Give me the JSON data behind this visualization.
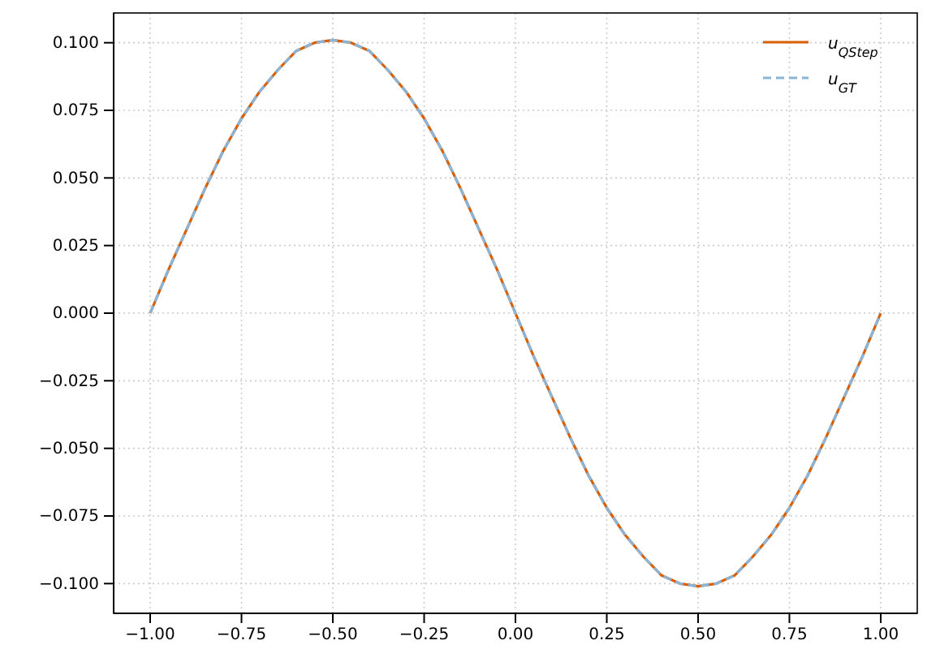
{
  "chart_data": {
    "type": "line",
    "x": [
      -1,
      -0.95,
      -0.9,
      -0.85,
      -0.8,
      -0.75,
      -0.7,
      -0.65,
      -0.6,
      -0.55,
      -0.5,
      -0.45,
      -0.4,
      -0.35,
      -0.3,
      -0.25,
      -0.2,
      -0.15,
      -0.1,
      -0.05,
      0,
      0.05,
      0.1,
      0.15,
      0.2,
      0.25,
      0.3,
      0.35,
      0.4,
      0.45,
      0.5,
      0.55,
      0.6,
      0.65,
      0.7,
      0.75,
      0.8,
      0.85,
      0.9,
      0.95,
      1
    ],
    "series": [
      {
        "name": "u$_{QStep}$",
        "color": "#d95f02",
        "line_style": "solid",
        "values": [
          0,
          0.016,
          0.031,
          0.046,
          0.06,
          0.072,
          0.082,
          0.09,
          0.097,
          0.1,
          0.101,
          0.1,
          0.097,
          0.09,
          0.082,
          0.072,
          0.06,
          0.046,
          0.031,
          0.016,
          0,
          -0.016,
          -0.031,
          -0.046,
          -0.06,
          -0.072,
          -0.082,
          -0.09,
          -0.097,
          -0.1,
          -0.101,
          -0.1,
          -0.097,
          -0.09,
          -0.082,
          -0.072,
          -0.06,
          -0.046,
          -0.031,
          -0.016,
          0
        ]
      },
      {
        "name": "u$_{GT}$",
        "color": "#8ab4d8",
        "line_style": "dashed",
        "values": [
          0,
          0.016,
          0.031,
          0.046,
          0.06,
          0.072,
          0.082,
          0.09,
          0.097,
          0.1,
          0.101,
          0.1,
          0.097,
          0.09,
          0.082,
          0.072,
          0.06,
          0.046,
          0.031,
          0.016,
          0,
          -0.016,
          -0.031,
          -0.046,
          -0.06,
          -0.072,
          -0.082,
          -0.09,
          -0.097,
          -0.1,
          -0.101,
          -0.1,
          -0.097,
          -0.09,
          -0.082,
          -0.072,
          -0.06,
          -0.046,
          -0.031,
          -0.016,
          0
        ]
      }
    ],
    "xlim": [
      -1.1,
      1.1
    ],
    "ylim": [
      -0.111,
      0.111
    ],
    "xticks": [
      {
        "value": -1,
        "label": "−1.00"
      },
      {
        "value": -0.75,
        "label": "−0.75"
      },
      {
        "value": -0.5,
        "label": "−0.50"
      },
      {
        "value": -0.25,
        "label": "−0.25"
      },
      {
        "value": 0,
        "label": "0.00"
      },
      {
        "value": 0.25,
        "label": "0.25"
      },
      {
        "value": 0.5,
        "label": "0.50"
      },
      {
        "value": 0.75,
        "label": "0.75"
      },
      {
        "value": 1,
        "label": "1.00"
      }
    ],
    "yticks": [
      {
        "value": -0.1,
        "label": "−0.100"
      },
      {
        "value": -0.075,
        "label": "−0.075"
      },
      {
        "value": -0.05,
        "label": "−0.050"
      },
      {
        "value": -0.025,
        "label": "−0.025"
      },
      {
        "value": 0,
        "label": "0.000"
      },
      {
        "value": 0.025,
        "label": "0.025"
      },
      {
        "value": 0.05,
        "label": "0.050"
      },
      {
        "value": 0.075,
        "label": "0.075"
      },
      {
        "value": 0.1,
        "label": "0.100"
      }
    ],
    "grid": true,
    "legend": "top right"
  }
}
